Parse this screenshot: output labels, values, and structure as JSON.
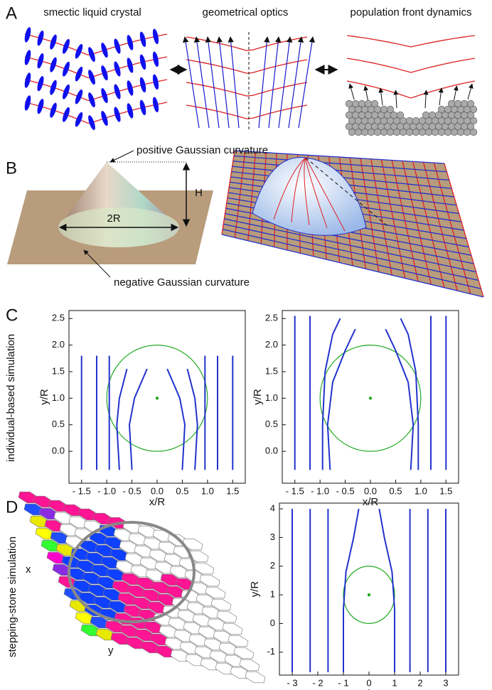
{
  "panels": [
    {
      "label": "A",
      "texts": [
        "smectic liquid crystal",
        "geometrical optics",
        "population front dynamics"
      ]
    },
    {
      "label": "B",
      "texts": [
        "positive Gaussian curvature",
        "H",
        "2R",
        "negative Gaussian curvature"
      ]
    },
    {
      "label": "C",
      "side_label": "individual-based simulation"
    },
    {
      "label": "D",
      "side_label": "stepping-stone simulation",
      "texts": [
        "x",
        "y"
      ]
    }
  ],
  "chart_data": [
    {
      "type": "line",
      "xlabel": "x/R",
      "ylabel": "y/R",
      "xlim": [
        -1.75,
        1.75
      ],
      "ylim": [
        -0.6,
        2.65
      ],
      "xticks": [
        {
          "value": -1.5,
          "label": "- 1.5"
        },
        {
          "value": -1,
          "label": "- 1.0"
        },
        {
          "value": -0.5,
          "label": "- 0.5"
        },
        {
          "value": 0,
          "label": "0.0"
        },
        {
          "value": 0.5,
          "label": "0.5"
        },
        {
          "value": 1,
          "label": "1.0"
        },
        {
          "value": 1.5,
          "label": "1.5"
        }
      ],
      "yticks": [
        {
          "value": 0,
          "label": "0.0"
        },
        {
          "value": 0.5,
          "label": "0.5"
        },
        {
          "value": 1,
          "label": "1.0"
        },
        {
          "value": 1.5,
          "label": "1.5"
        },
        {
          "value": 2,
          "label": "2.0"
        },
        {
          "value": 2.5,
          "label": "2.5"
        }
      ],
      "circle": {
        "cx": 0,
        "cy": 1,
        "r": 1,
        "color": "#22aa22"
      },
      "series": [
        {
          "color": "#2233cc",
          "x": [
            -1.5,
            -1.5
          ],
          "y": [
            -0.35,
            1.8
          ]
        },
        {
          "color": "#2233cc",
          "x": [
            -1.2,
            -1.2
          ],
          "y": [
            -0.35,
            1.8
          ]
        },
        {
          "color": "#2233cc",
          "x": [
            -0.95,
            -0.95
          ],
          "y": [
            -0.35,
            1.8
          ]
        },
        {
          "color": "#2233cc",
          "x": [
            -0.75,
            -0.8,
            -0.75,
            -0.6
          ],
          "y": [
            -0.35,
            0.5,
            1.0,
            1.55
          ]
        },
        {
          "color": "#2233cc",
          "x": [
            -0.5,
            -0.55,
            -0.45,
            -0.2
          ],
          "y": [
            -0.35,
            0.5,
            1.0,
            1.55
          ]
        },
        {
          "color": "#2233cc",
          "x": [
            0.5,
            0.55,
            0.45,
            0.2
          ],
          "y": [
            -0.35,
            0.5,
            1.0,
            1.55
          ]
        },
        {
          "color": "#2233cc",
          "x": [
            0.75,
            0.8,
            0.75,
            0.6
          ],
          "y": [
            -0.35,
            0.5,
            1.0,
            1.55
          ]
        },
        {
          "color": "#2233cc",
          "x": [
            0.95,
            0.95
          ],
          "y": [
            -0.35,
            1.8
          ]
        },
        {
          "color": "#2233cc",
          "x": [
            1.2,
            1.2
          ],
          "y": [
            -0.35,
            1.8
          ]
        },
        {
          "color": "#2233cc",
          "x": [
            1.5,
            1.5
          ],
          "y": [
            -0.35,
            1.8
          ]
        }
      ]
    },
    {
      "type": "line",
      "xlabel": "x/R",
      "ylabel": "y/R",
      "xlim": [
        -1.75,
        1.75
      ],
      "ylim": [
        -0.6,
        2.65
      ],
      "xticks": [
        {
          "value": -1.5,
          "label": "- 1.5"
        },
        {
          "value": -1,
          "label": "- 1.0"
        },
        {
          "value": -0.5,
          "label": "- 0.5"
        },
        {
          "value": 0,
          "label": "0.0"
        },
        {
          "value": 0.5,
          "label": "0.5"
        },
        {
          "value": 1,
          "label": "1.0"
        },
        {
          "value": 1.5,
          "label": "1.5"
        }
      ],
      "yticks": [
        {
          "value": 0,
          "label": "0.0"
        },
        {
          "value": 0.5,
          "label": "0.5"
        },
        {
          "value": 1,
          "label": "1.0"
        },
        {
          "value": 1.5,
          "label": "1.5"
        },
        {
          "value": 2,
          "label": "2.0"
        },
        {
          "value": 2.5,
          "label": "2.5"
        }
      ],
      "circle": {
        "cx": 0,
        "cy": 1,
        "r": 1,
        "color": "#22aa22"
      },
      "series": [
        {
          "color": "#2233cc",
          "x": [
            -1.5,
            -1.5
          ],
          "y": [
            -0.35,
            2.55
          ]
        },
        {
          "color": "#2233cc",
          "x": [
            -1.2,
            -1.2
          ],
          "y": [
            -0.35,
            2.55
          ]
        },
        {
          "color": "#2233cc",
          "x": [
            -0.95,
            -0.95,
            -0.9,
            -0.75,
            -0.6
          ],
          "y": [
            -0.35,
            0.5,
            1.5,
            2.2,
            2.5
          ]
        },
        {
          "color": "#2233cc",
          "x": [
            -0.8,
            -0.85,
            -0.75,
            -0.5,
            -0.3
          ],
          "y": [
            -0.35,
            0.5,
            1.3,
            1.9,
            2.3
          ]
        },
        {
          "color": "#2233cc",
          "x": [
            0.8,
            0.85,
            0.75,
            0.5,
            0.3
          ],
          "y": [
            -0.35,
            0.5,
            1.3,
            1.9,
            2.3
          ]
        },
        {
          "color": "#2233cc",
          "x": [
            0.95,
            0.95,
            0.9,
            0.75,
            0.6
          ],
          "y": [
            -0.35,
            0.5,
            1.5,
            2.2,
            2.5
          ]
        },
        {
          "color": "#2233cc",
          "x": [
            1.2,
            1.2
          ],
          "y": [
            -0.35,
            2.55
          ]
        },
        {
          "color": "#2233cc",
          "x": [
            1.5,
            1.5
          ],
          "y": [
            -0.35,
            2.55
          ]
        }
      ]
    },
    {
      "type": "line",
      "xlabel": "x/R",
      "ylabel": "y/R",
      "xlim": [
        -3.5,
        3.5
      ],
      "ylim": [
        -1.8,
        4.2
      ],
      "xticks": [
        {
          "value": -3,
          "label": "- 3"
        },
        {
          "value": -2,
          "label": "- 2"
        },
        {
          "value": -1,
          "label": "- 1"
        },
        0,
        1,
        2,
        3
      ],
      "yticks": [
        -1,
        0,
        1,
        2,
        3,
        4
      ],
      "circle": {
        "cx": 0,
        "cy": 1,
        "r": 1,
        "color": "#22aa22"
      },
      "series": [
        {
          "color": "#2233cc",
          "x": [
            -3,
            -3
          ],
          "y": [
            -1.7,
            4
          ]
        },
        {
          "color": "#2233cc",
          "x": [
            -2.3,
            -2.3
          ],
          "y": [
            -1.7,
            4
          ]
        },
        {
          "color": "#2233cc",
          "x": [
            -1.6,
            -1.6
          ],
          "y": [
            -1.7,
            4
          ]
        },
        {
          "color": "#2233cc",
          "x": [
            -1,
            -1,
            -0.9,
            -0.6,
            -0.4
          ],
          "y": [
            -1.7,
            0.5,
            1.8,
            3,
            4
          ]
        },
        {
          "color": "#2233cc",
          "x": [
            1,
            1,
            0.9,
            0.6,
            0.4
          ],
          "y": [
            -1.7,
            0.5,
            1.8,
            3,
            4
          ]
        },
        {
          "color": "#2233cc",
          "x": [
            1.6,
            1.6
          ],
          "y": [
            -1.7,
            4
          ]
        },
        {
          "color": "#2233cc",
          "x": [
            2.3,
            2.3
          ],
          "y": [
            -1.7,
            4
          ]
        },
        {
          "color": "#2233cc",
          "x": [
            3,
            3
          ],
          "y": [
            -1.7,
            4
          ]
        }
      ]
    }
  ]
}
